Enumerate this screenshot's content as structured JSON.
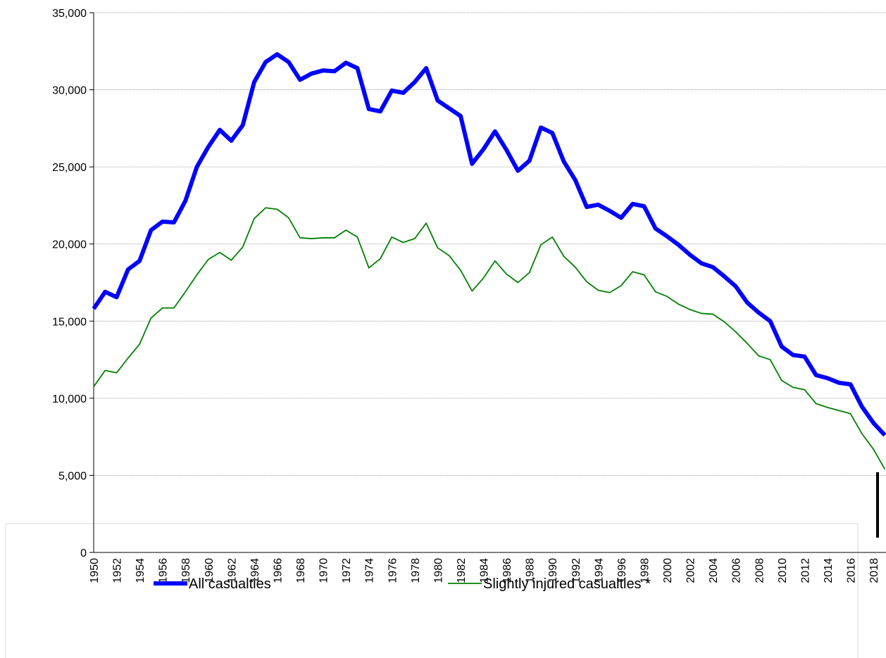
{
  "chart_data": {
    "type": "line",
    "categories": [
      "1950",
      null,
      "1952",
      null,
      "1954",
      null,
      "1956",
      null,
      "1958",
      null,
      "1960",
      null,
      "1962",
      null,
      "1964",
      null,
      "1966",
      null,
      "1968",
      null,
      "1970",
      null,
      "1972",
      null,
      "1974",
      null,
      "1976",
      null,
      "1978",
      null,
      "1980",
      null,
      "1982",
      null,
      "1984",
      null,
      "1986",
      null,
      "1988",
      null,
      "1990",
      null,
      "1992",
      null,
      "1994",
      null,
      "1996",
      null,
      "1998",
      null,
      "2000",
      null,
      "2002",
      null,
      "2004",
      null,
      "2006",
      null,
      "2008",
      null,
      "2010",
      null,
      "2012",
      null,
      "2014",
      null,
      "2016",
      null,
      "2018",
      null
    ],
    "series": [
      {
        "name": "All casualties",
        "color": "#0000ff",
        "values": [
          15800,
          16900,
          16550,
          18350,
          18900,
          20900,
          21450,
          21400,
          22800,
          25000,
          26300,
          27400,
          26700,
          27700,
          30500,
          31800,
          32300,
          31800,
          30650,
          31050,
          31250,
          31200,
          31750,
          31400,
          28750,
          28600,
          29950,
          29800,
          30500,
          31400,
          29300,
          28800,
          28300,
          25200,
          26150,
          27300,
          26100,
          24750,
          25400,
          27550,
          27200,
          25350,
          24150,
          22400,
          22550,
          22150,
          21700,
          22600,
          22450,
          21000,
          20500,
          19950,
          19300,
          18750,
          18500,
          17900,
          17250,
          16200,
          15550,
          15000,
          13350,
          12800,
          12700,
          11500,
          11300,
          11000,
          10900,
          9450,
          8400,
          7600
        ]
      },
      {
        "name": "Slightly injured casualties *",
        "color": "#008000",
        "values": [
          10750,
          11800,
          11650,
          12600,
          13500,
          15200,
          15850,
          15850,
          16900,
          18000,
          19000,
          19450,
          18950,
          19800,
          21650,
          22350,
          22250,
          21700,
          20400,
          20350,
          20400,
          20400,
          20900,
          20450,
          18450,
          19050,
          20450,
          20100,
          20350,
          21350,
          19750,
          19250,
          18300,
          16950,
          17800,
          18900,
          18050,
          17500,
          18150,
          19950,
          20450,
          19200,
          18500,
          17550,
          17000,
          16850,
          17300,
          18200,
          18000,
          16900,
          16600,
          16100,
          15750,
          15500,
          15450,
          14950,
          14300,
          13550,
          12750,
          12500,
          11150,
          10700,
          10550,
          9650,
          9400,
          9200,
          9000,
          7700,
          6700,
          5400
        ]
      }
    ],
    "ylim": [
      0,
      35000
    ],
    "yticks": [
      0,
      {
        "value": 5000,
        "label": "5,000"
      },
      {
        "value": 10000,
        "label": "10,000"
      },
      {
        "value": 15000,
        "label": "15,000"
      },
      {
        "value": 20000,
        "label": "20,000"
      },
      {
        "value": 25000,
        "label": "25,000"
      },
      {
        "value": 30000,
        "label": "30,000"
      },
      {
        "value": 35000,
        "label": "35,000"
      }
    ],
    "grid": true
  }
}
